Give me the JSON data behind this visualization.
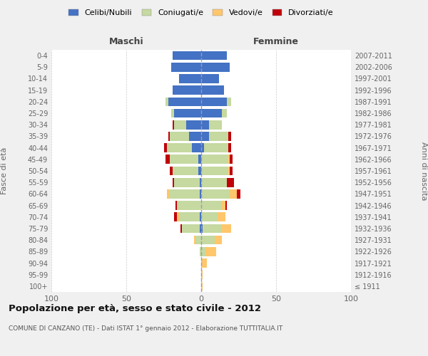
{
  "age_groups": [
    "100+",
    "95-99",
    "90-94",
    "85-89",
    "80-84",
    "75-79",
    "70-74",
    "65-69",
    "60-64",
    "55-59",
    "50-54",
    "45-49",
    "40-44",
    "35-39",
    "30-34",
    "25-29",
    "20-24",
    "15-19",
    "10-14",
    "5-9",
    "0-4"
  ],
  "birth_years": [
    "≤ 1911",
    "1912-1916",
    "1917-1921",
    "1922-1926",
    "1927-1931",
    "1932-1936",
    "1937-1941",
    "1942-1946",
    "1947-1951",
    "1952-1956",
    "1957-1961",
    "1962-1966",
    "1967-1971",
    "1972-1976",
    "1977-1981",
    "1982-1986",
    "1987-1991",
    "1992-1996",
    "1997-2001",
    "2002-2006",
    "2007-2011"
  ],
  "male_celibe": [
    0,
    0,
    0,
    0,
    0,
    1,
    1,
    0,
    1,
    1,
    2,
    2,
    6,
    8,
    10,
    18,
    22,
    19,
    15,
    20,
    19
  ],
  "male_coniugato": [
    0,
    0,
    0,
    1,
    4,
    12,
    14,
    16,
    20,
    17,
    17,
    19,
    17,
    13,
    8,
    2,
    2,
    0,
    0,
    0,
    0
  ],
  "male_vedovo": [
    0,
    0,
    0,
    0,
    1,
    0,
    1,
    0,
    2,
    0,
    0,
    0,
    0,
    0,
    0,
    0,
    0,
    0,
    0,
    0,
    0
  ],
  "male_divorziato": [
    0,
    0,
    0,
    0,
    0,
    1,
    2,
    1,
    0,
    1,
    2,
    3,
    2,
    1,
    1,
    0,
    0,
    0,
    0,
    0,
    0
  ],
  "female_celibe": [
    0,
    0,
    0,
    0,
    0,
    1,
    0,
    0,
    0,
    0,
    0,
    0,
    2,
    5,
    5,
    14,
    17,
    15,
    12,
    19,
    17
  ],
  "female_coniugato": [
    0,
    0,
    0,
    3,
    9,
    13,
    11,
    14,
    19,
    17,
    18,
    18,
    16,
    13,
    9,
    3,
    3,
    0,
    0,
    0,
    0
  ],
  "female_vedovo": [
    1,
    1,
    4,
    7,
    5,
    6,
    5,
    2,
    5,
    0,
    1,
    1,
    0,
    0,
    0,
    0,
    0,
    0,
    0,
    0,
    0
  ],
  "female_divorziata": [
    0,
    0,
    0,
    0,
    0,
    0,
    0,
    1,
    2,
    5,
    2,
    2,
    2,
    2,
    0,
    0,
    0,
    0,
    0,
    0,
    0
  ],
  "colors": {
    "celibe": "#4472c4",
    "coniugato": "#c5d9a0",
    "vedovo": "#ffc66b",
    "divorziato": "#c0000a"
  },
  "title": "Popolazione per età, sesso e stato civile - 2012",
  "subtitle": "COMUNE DI CANZANO (TE) - Dati ISTAT 1° gennaio 2012 - Elaborazione TUTTITALIA.IT",
  "xlabel_left": "Maschi",
  "xlabel_right": "Femmine",
  "ylabel_left": "Fasce di età",
  "ylabel_right": "Anni di nascita",
  "xlim": 100,
  "bg_color": "#f0f0f0",
  "plot_bg": "#ffffff",
  "legend_labels": [
    "Celibi/Nubili",
    "Coniugati/e",
    "Vedovi/e",
    "Divorziati/e"
  ]
}
